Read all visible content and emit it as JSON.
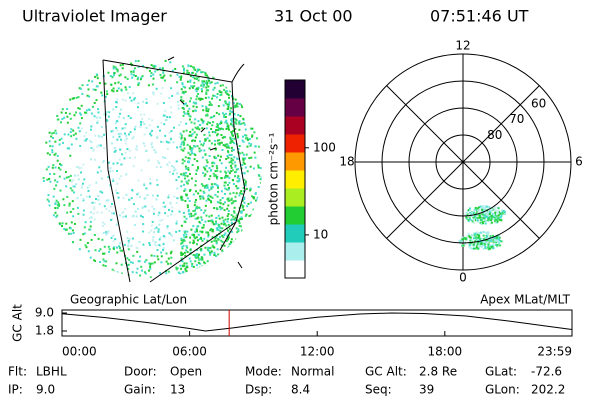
{
  "header": {
    "title": "Ultraviolet Imager",
    "date": "31 Oct 00",
    "time": "07:51:46 UT"
  },
  "colorbar": {
    "label": "photon cm⁻²s⁻¹",
    "ticks": [
      10,
      100
    ],
    "lim": [
      3.2,
      600
    ],
    "log": true
  },
  "polar": {
    "lat_lim": [
      50,
      90
    ],
    "lat_ticks": [
      60,
      70,
      80
    ],
    "mlt_ticks": [
      12,
      18,
      6,
      0
    ]
  },
  "chart_data": {
    "type": "line",
    "ylabel": "GC Alt",
    "left_label": "Geographic Lat/Lon",
    "right_label": "Apex MLat/MLT",
    "x": [
      0,
      2,
      4,
      6,
      6.75,
      8,
      10,
      12,
      14,
      15.5,
      17,
      19,
      21,
      23,
      23.98
    ],
    "y": [
      8.7,
      7.2,
      5.2,
      2.8,
      1.8,
      3.0,
      5.3,
      7.3,
      8.6,
      9.0,
      8.8,
      7.8,
      5.8,
      3.5,
      2.4
    ],
    "color": "#000000",
    "current_time": 7.86,
    "current_color": "#cc0000",
    "xlim": [
      0,
      23.98
    ],
    "ylim": [
      -0.2,
      10.2
    ],
    "xticks": [
      {
        "value": 0,
        "label": "00:00"
      },
      {
        "value": 6,
        "label": "06:00"
      },
      {
        "value": 12,
        "label": "12:00"
      },
      {
        "value": 18,
        "label": "18:00"
      },
      {
        "value": 23.98,
        "label": "23:59"
      }
    ],
    "yticks": [
      {
        "value": 9,
        "label": "9.0"
      },
      1.8
    ]
  },
  "footer": {
    "rows": [
      [
        {
          "label": "Flt:",
          "value": "LBHL"
        },
        {
          "label": "Door:",
          "value": "Open"
        },
        {
          "label": "Mode:",
          "value": "Normal"
        },
        {
          "label": "GC Alt:",
          "value": "2.8 Re"
        },
        {
          "label": "GLat:",
          "value": "-72.6"
        }
      ],
      [
        {
          "label": "IP:",
          "value": "9.0"
        },
        {
          "label": "Gain:",
          "value": "13"
        },
        {
          "label": "Dsp:",
          "value": "8.4"
        },
        {
          "label": "Seq:",
          "value": "39"
        },
        {
          "label": "GLon:",
          "value": "202.2"
        }
      ]
    ]
  }
}
